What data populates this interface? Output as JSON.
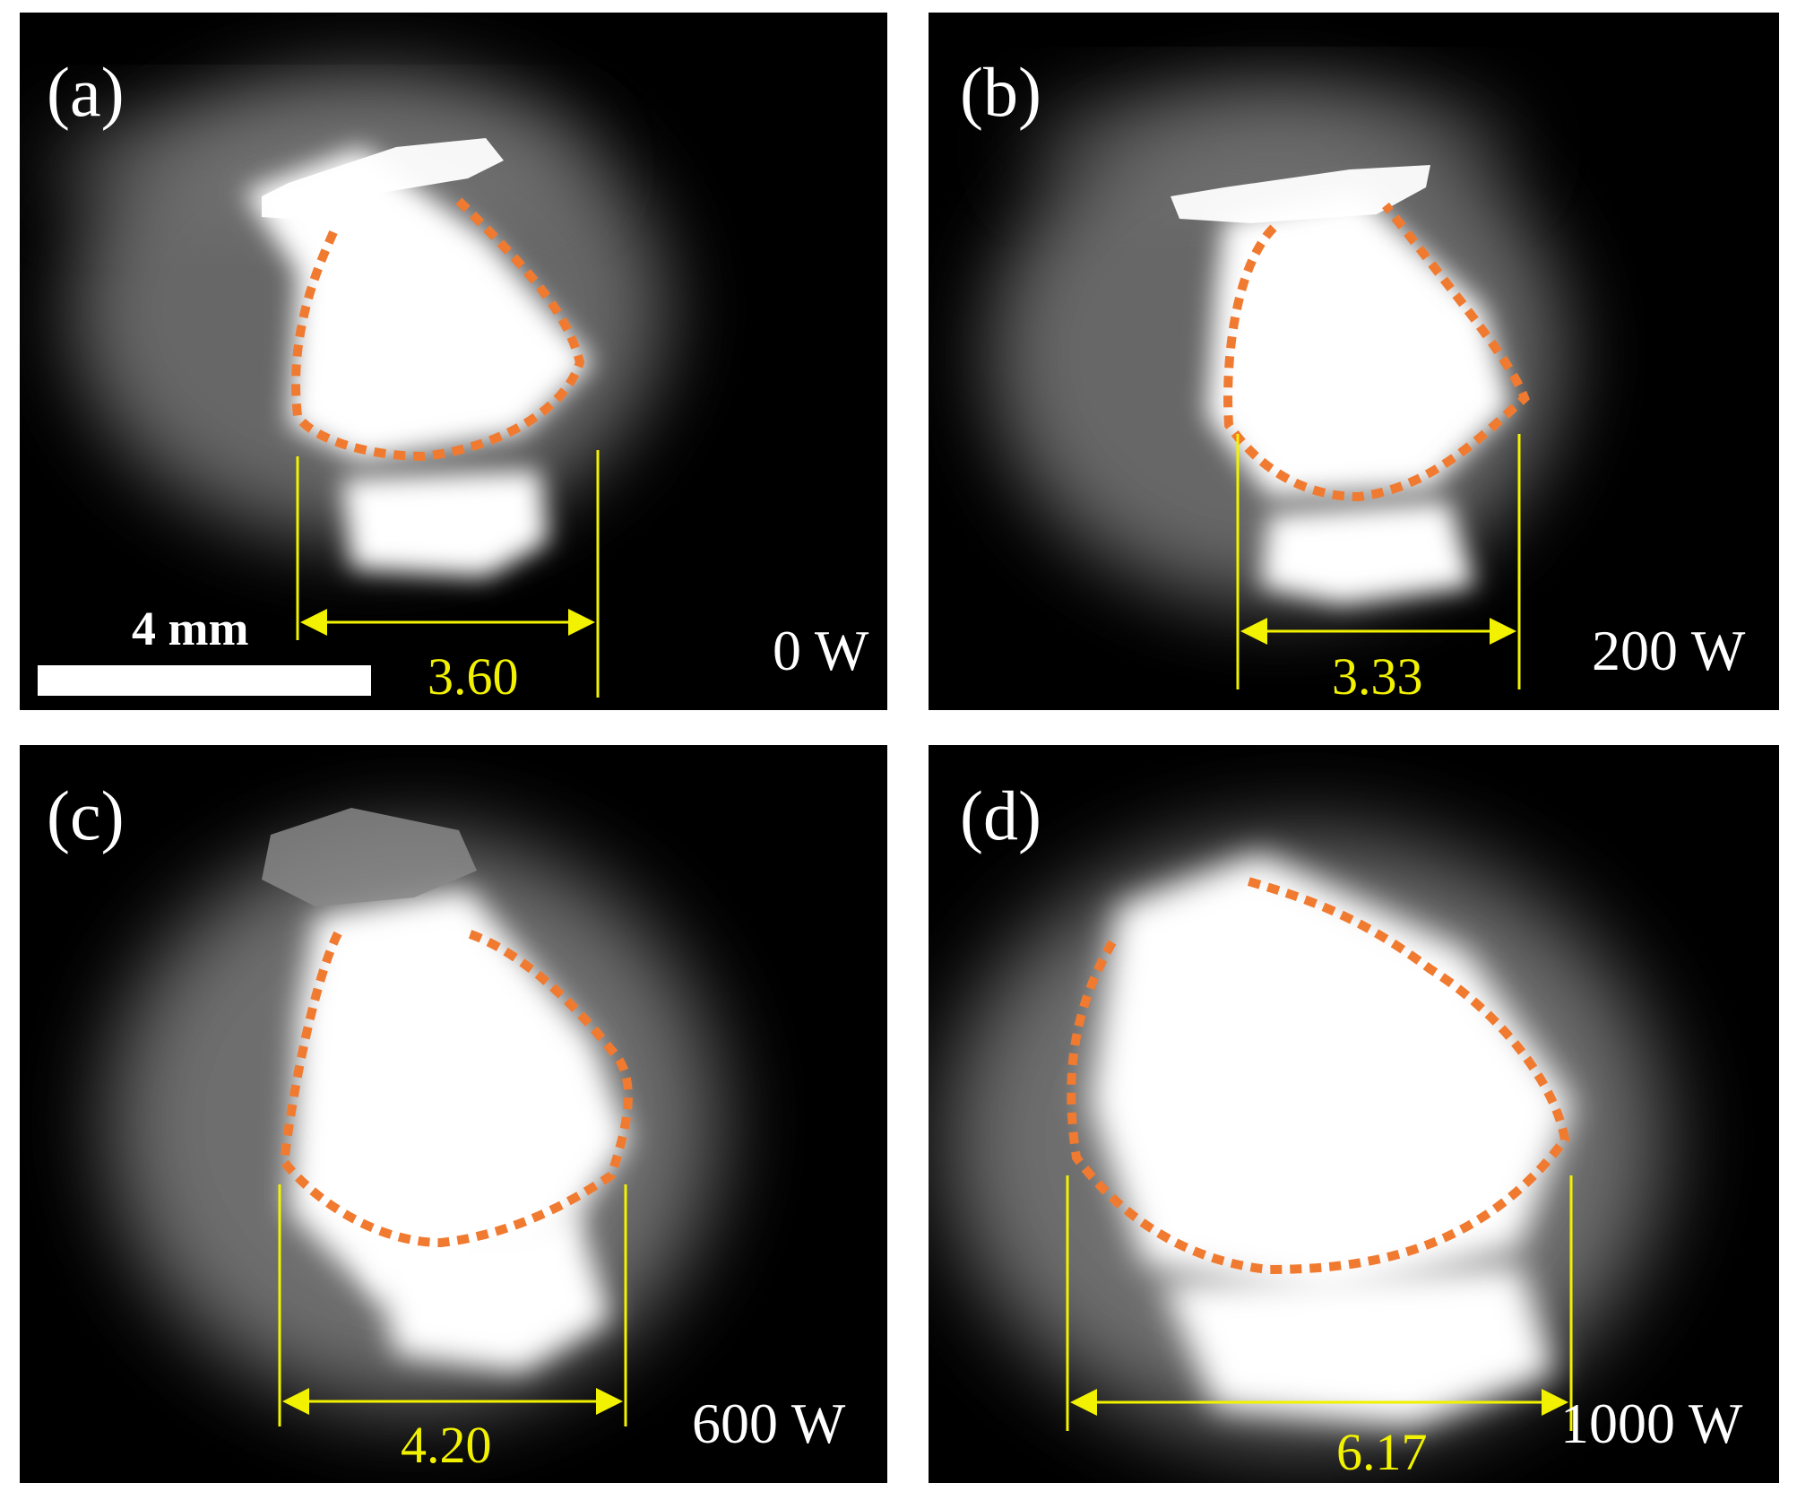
{
  "panels": [
    {
      "label": "(a)",
      "power": "0 W",
      "width_mm": "3.60"
    },
    {
      "label": "(b)",
      "power": "200 W",
      "width_mm": "3.33"
    },
    {
      "label": "(c)",
      "power": "600 W",
      "width_mm": "4.20"
    },
    {
      "label": "(d)",
      "power": "1000 W",
      "width_mm": "6.17"
    }
  ],
  "scale_bar": {
    "label": "4 mm"
  },
  "colors": {
    "outline": "#f07a30",
    "measurement": "#f2f200",
    "background": "#000000",
    "glow": "#ffffff"
  }
}
